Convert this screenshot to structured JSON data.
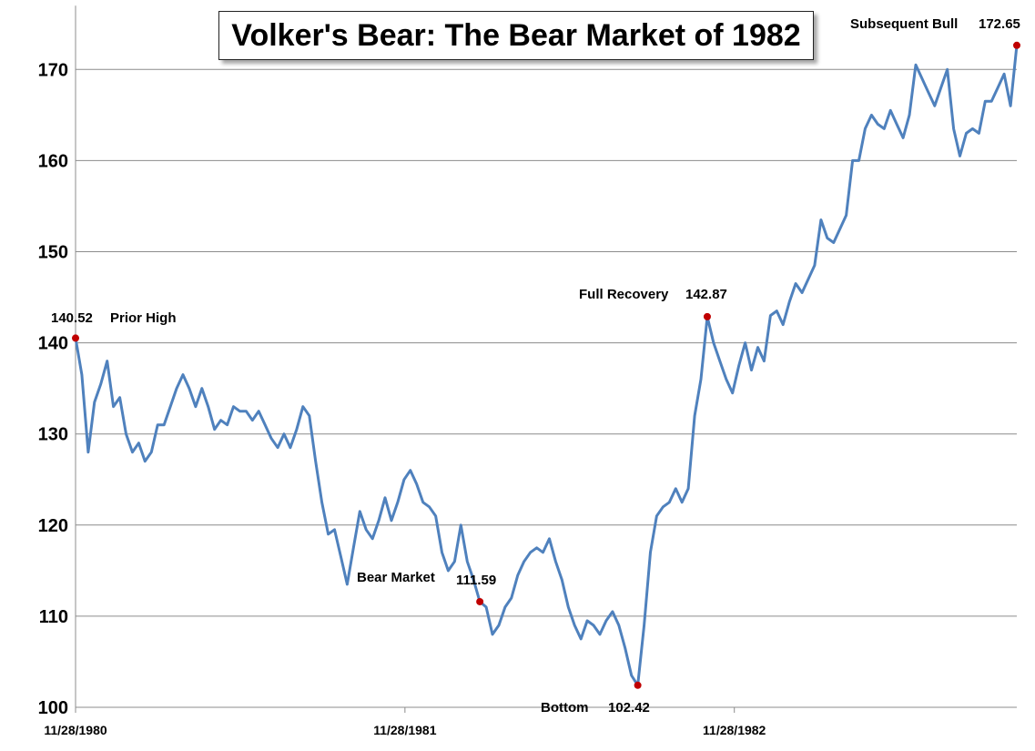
{
  "chart_data": {
    "type": "line",
    "title": "Volker's Bear: The Bear Market of 1982",
    "xlabel": "",
    "ylabel": "",
    "ylim": [
      100,
      177
    ],
    "yticks": [
      100,
      110,
      120,
      130,
      140,
      150,
      160,
      170
    ],
    "xticks": [
      {
        "date": "1980-11-28",
        "label": "11/28/1980"
      },
      {
        "date": "1981-11-28",
        "label": "11/28/1981"
      },
      {
        "date": "1982-11-28",
        "label": "11/28/1982"
      }
    ],
    "grid": "horizontal",
    "line_color": "#4f81bd",
    "marker_color": "#c00000",
    "x": [
      "1980-11-28",
      "1980-12-05",
      "1980-12-12",
      "1980-12-19",
      "1980-12-26",
      "1981-01-02",
      "1981-01-09",
      "1981-01-16",
      "1981-01-23",
      "1981-01-30",
      "1981-02-06",
      "1981-02-13",
      "1981-02-20",
      "1981-02-27",
      "1981-03-06",
      "1981-03-13",
      "1981-03-20",
      "1981-03-27",
      "1981-04-03",
      "1981-04-10",
      "1981-04-17",
      "1981-04-24",
      "1981-05-01",
      "1981-05-08",
      "1981-05-15",
      "1981-05-22",
      "1981-05-29",
      "1981-06-05",
      "1981-06-12",
      "1981-06-19",
      "1981-06-26",
      "1981-07-03",
      "1981-07-10",
      "1981-07-17",
      "1981-07-24",
      "1981-07-31",
      "1981-08-07",
      "1981-08-14",
      "1981-08-21",
      "1981-08-28",
      "1981-09-04",
      "1981-09-11",
      "1981-09-18",
      "1981-09-25",
      "1981-10-02",
      "1981-10-09",
      "1981-10-16",
      "1981-10-23",
      "1981-10-30",
      "1981-11-06",
      "1981-11-13",
      "1981-11-20",
      "1981-11-27",
      "1981-12-04",
      "1981-12-11",
      "1981-12-18",
      "1981-12-25",
      "1982-01-01",
      "1982-01-08",
      "1982-01-15",
      "1982-01-22",
      "1982-01-29",
      "1982-02-05",
      "1982-02-12",
      "1982-02-19",
      "1982-02-26",
      "1982-03-05",
      "1982-03-12",
      "1982-03-19",
      "1982-03-26",
      "1982-04-02",
      "1982-04-09",
      "1982-04-16",
      "1982-04-23",
      "1982-04-30",
      "1982-05-07",
      "1982-05-14",
      "1982-05-21",
      "1982-05-28",
      "1982-06-04",
      "1982-06-11",
      "1982-06-18",
      "1982-06-25",
      "1982-07-02",
      "1982-07-09",
      "1982-07-16",
      "1982-07-23",
      "1982-07-30",
      "1982-08-06",
      "1982-08-13",
      "1982-08-20",
      "1982-08-27",
      "1982-09-03",
      "1982-09-10",
      "1982-09-17",
      "1982-09-24",
      "1982-10-01",
      "1982-10-08",
      "1982-10-15",
      "1982-10-22",
      "1982-10-29",
      "1982-11-05",
      "1982-11-12",
      "1982-11-19",
      "1982-11-26",
      "1982-12-03",
      "1982-12-10",
      "1982-12-17",
      "1982-12-24",
      "1982-12-31",
      "1983-01-07",
      "1983-01-14",
      "1983-01-21",
      "1983-01-28",
      "1983-02-04",
      "1983-02-11",
      "1983-02-18",
      "1983-02-25",
      "1983-03-04",
      "1983-03-11",
      "1983-03-18",
      "1983-03-25",
      "1983-04-01",
      "1983-04-08",
      "1983-04-15",
      "1983-04-22",
      "1983-04-29",
      "1983-05-06",
      "1983-05-13",
      "1983-05-20",
      "1983-05-27",
      "1983-06-03",
      "1983-06-10",
      "1983-06-17",
      "1983-06-24",
      "1983-07-01",
      "1983-07-08",
      "1983-07-15",
      "1983-07-22",
      "1983-07-29",
      "1983-08-05",
      "1983-08-12",
      "1983-08-19",
      "1983-08-26",
      "1983-09-02",
      "1983-09-09",
      "1983-09-16",
      "1983-09-23",
      "1983-09-30",
      "1983-10-07"
    ],
    "values": [
      140.52,
      136.5,
      128,
      133.5,
      135.5,
      138,
      133,
      134,
      130,
      128,
      129,
      127,
      128,
      131,
      131,
      133,
      135,
      136.5,
      135,
      133,
      135,
      133,
      130.5,
      131.5,
      131,
      133,
      132.5,
      132.5,
      131.5,
      132.5,
      131,
      129.5,
      128.5,
      130,
      128.5,
      130.5,
      133,
      132,
      127,
      122.5,
      119,
      119.5,
      116.5,
      113.5,
      117.5,
      121.5,
      119.5,
      118.5,
      120.5,
      123,
      120.5,
      122.5,
      125,
      126,
      124.5,
      122.5,
      122,
      121,
      117,
      115,
      116,
      120,
      116,
      114,
      111.59,
      111,
      108,
      109,
      111,
      112,
      114.5,
      116,
      117,
      117.5,
      117,
      118.5,
      116,
      114,
      111,
      109,
      107.5,
      109.5,
      109,
      108,
      109.5,
      110.5,
      109,
      106.5,
      103.5,
      102.42,
      109,
      117,
      121,
      122,
      122.5,
      124,
      122.5,
      124,
      132,
      136,
      142.87,
      140,
      138,
      136,
      134.5,
      137.5,
      140,
      137,
      139.5,
      138,
      143,
      143.5,
      142,
      144.5,
      146.5,
      145.5,
      147,
      148.5,
      153.5,
      151.5,
      151,
      152.5,
      154,
      160,
      160,
      163.5,
      165,
      164,
      163.5,
      165.5,
      164,
      162.5,
      165,
      170.5,
      169,
      167.5,
      166,
      168,
      170,
      163.5,
      160.5,
      163,
      163.5,
      163,
      166.5,
      166.5,
      168,
      169.5,
      166,
      172.65
    ],
    "annotations": [
      {
        "id": "prior-high",
        "label": "Prior High",
        "value_text": "140.52",
        "date": "1980-11-28",
        "value": 140.52
      },
      {
        "id": "bear-market",
        "label": "Bear Market",
        "value_text": "111.59",
        "date": "1982-02-19",
        "value": 111.59
      },
      {
        "id": "bottom",
        "label": "Bottom",
        "value_text": "102.42",
        "date": "1982-08-13",
        "value": 102.42
      },
      {
        "id": "full-recovery",
        "label": "Full Recovery",
        "value_text": "142.87",
        "date": "1982-10-29",
        "value": 142.87
      },
      {
        "id": "subsequent-bull",
        "label": "Subsequent Bull",
        "value_text": "172.65",
        "date": "1983-10-07",
        "value": 172.65
      }
    ]
  }
}
